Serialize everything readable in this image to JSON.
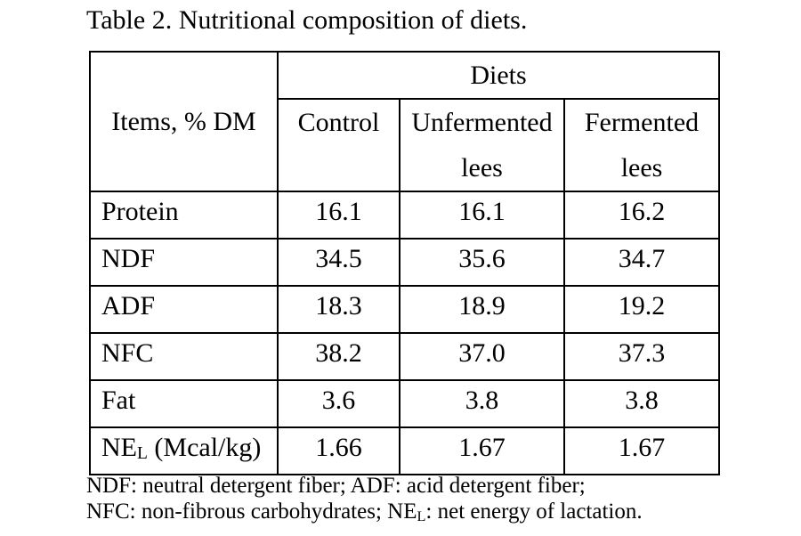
{
  "caption": "Table 2. Nutritional composition of diets.",
  "table": {
    "items_header": "Items, % DM",
    "group_header": "Diets",
    "columns": [
      "Control",
      "Unfermented lees",
      "Fermented lees"
    ],
    "rows": [
      {
        "label": "Protein",
        "values": [
          "16.1",
          "16.1",
          "16.2"
        ]
      },
      {
        "label": "NDF",
        "values": [
          "34.5",
          "35.6",
          "34.7"
        ]
      },
      {
        "label": "ADF",
        "values": [
          "18.3",
          "18.9",
          "19.2"
        ]
      },
      {
        "label": "NFC",
        "values": [
          "38.2",
          "37.0",
          "37.3"
        ]
      },
      {
        "label": "Fat",
        "values": [
          "3.6",
          "3.8",
          "3.8"
        ]
      },
      {
        "label_prefix": "NE",
        "label_sub": "L",
        "label_suffix": " (Mcal/kg)",
        "values": [
          "1.66",
          "1.67",
          "1.67"
        ]
      }
    ]
  },
  "footnote": {
    "line1": "NDF: neutral detergent fiber; ADF: acid detergent fiber;",
    "line2_prefix": "NFC: non-fibrous carbohydrates; NE",
    "line2_sub": "L",
    "line2_suffix": ": net energy of lactation."
  },
  "colors": {
    "text": "#000000",
    "border": "#000000",
    "background": "#ffffff"
  }
}
